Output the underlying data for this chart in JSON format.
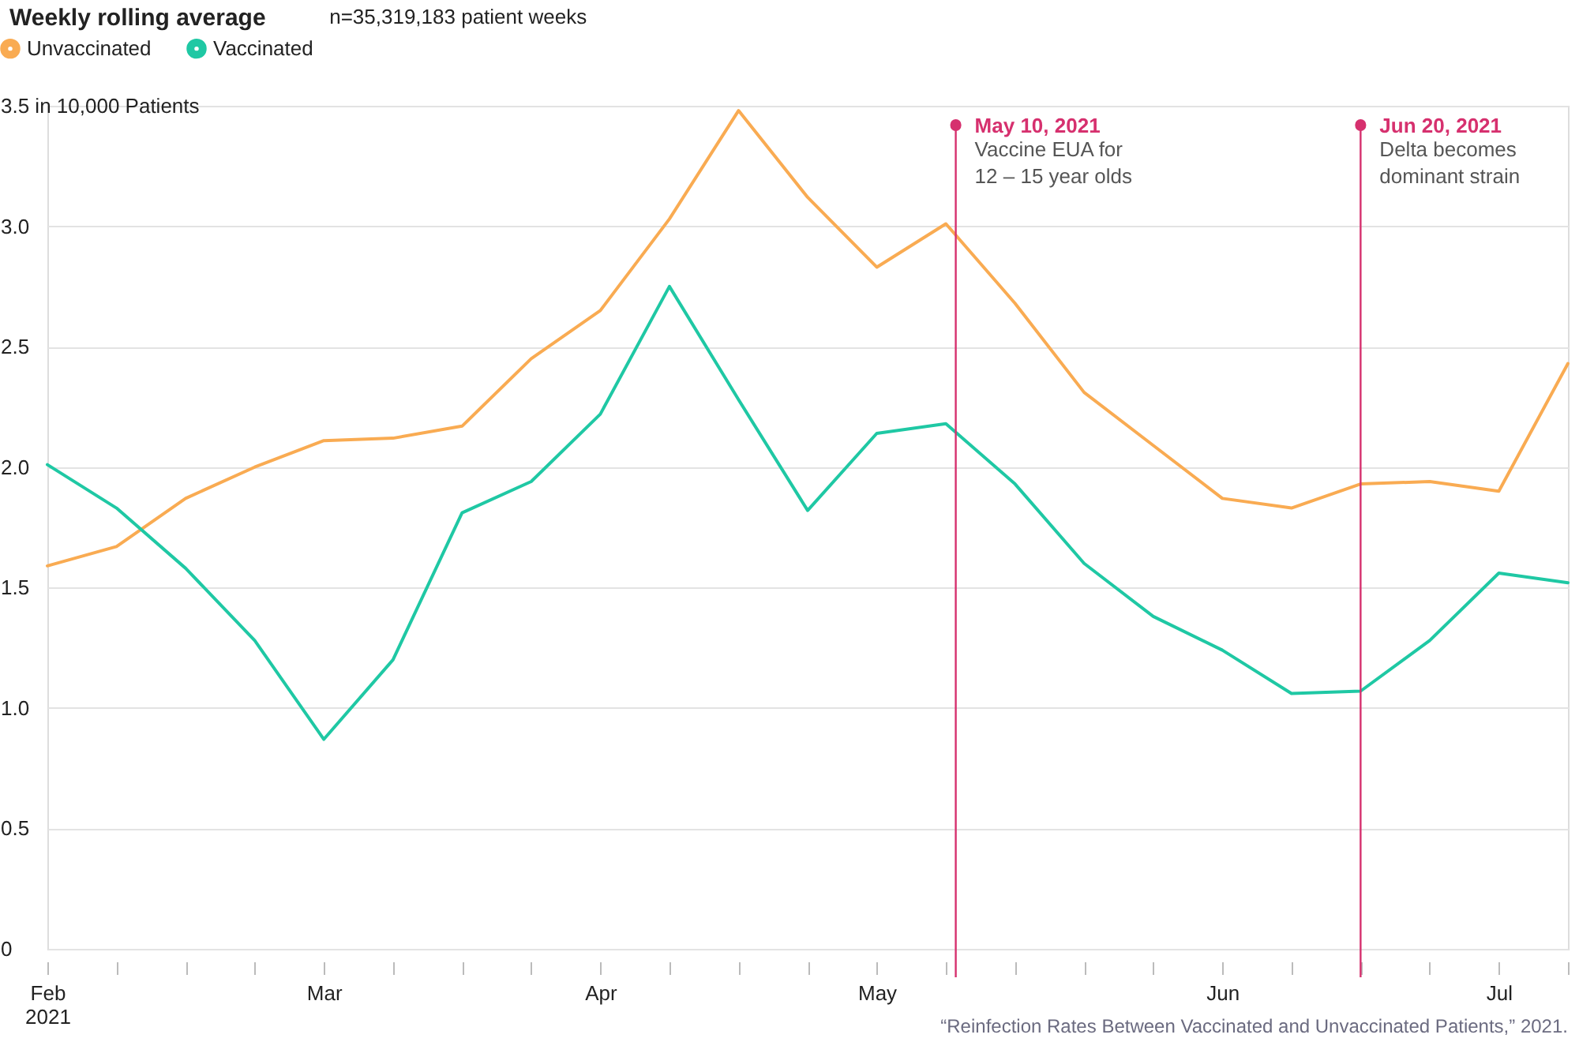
{
  "chart_data": {
    "type": "line",
    "title": "Weekly rolling average",
    "subtitle": "n=35,319,183 patient weeks",
    "x": [
      "2021-02-07",
      "2021-02-14",
      "2021-02-21",
      "2021-02-28",
      "2021-03-07",
      "2021-03-14",
      "2021-03-21",
      "2021-03-28",
      "2021-04-04",
      "2021-04-11",
      "2021-04-18",
      "2021-04-25",
      "2021-05-02",
      "2021-05-09",
      "2021-05-16",
      "2021-05-23",
      "2021-05-30",
      "2021-06-06",
      "2021-06-13",
      "2021-06-20",
      "2021-06-27",
      "2021-07-04",
      "2021-07-11"
    ],
    "series": [
      {
        "name": "Unvaccinated",
        "color": "#f9ab52",
        "values": [
          1.59,
          1.67,
          1.87,
          2.0,
          2.11,
          2.12,
          2.17,
          2.45,
          2.65,
          3.03,
          3.48,
          3.12,
          2.83,
          3.01,
          2.68,
          2.31,
          2.09,
          1.87,
          1.83,
          1.93,
          1.94,
          1.9,
          2.43
        ]
      },
      {
        "name": "Vaccinated",
        "color": "#1fc8a4",
        "values": [
          2.01,
          1.83,
          1.58,
          1.28,
          0.87,
          1.2,
          1.81,
          1.94,
          2.22,
          2.75,
          2.28,
          1.82,
          2.14,
          2.18,
          1.93,
          1.6,
          1.38,
          1.24,
          1.06,
          1.07,
          1.28,
          1.56,
          1.52
        ]
      }
    ],
    "xlim": [
      "2021-02-07",
      "2021-07-11"
    ],
    "xticks": [
      {
        "value": "2021-02-07",
        "label": "Feb\n2021"
      },
      {
        "value": "2021-02-14",
        "label": null
      },
      {
        "value": "2021-02-21",
        "label": null
      },
      {
        "value": "2021-02-28",
        "label": null
      },
      {
        "value": "2021-03-07",
        "label": "Mar"
      },
      {
        "value": "2021-03-14",
        "label": null
      },
      {
        "value": "2021-03-21",
        "label": null
      },
      {
        "value": "2021-03-28",
        "label": null
      },
      {
        "value": "2021-04-04",
        "label": "Apr"
      },
      {
        "value": "2021-04-11",
        "label": null
      },
      {
        "value": "2021-04-18",
        "label": null
      },
      {
        "value": "2021-04-25",
        "label": null
      },
      {
        "value": "2021-05-02",
        "label": "May"
      },
      {
        "value": "2021-05-09",
        "label": null
      },
      {
        "value": "2021-05-16",
        "label": null
      },
      {
        "value": "2021-05-23",
        "label": null
      },
      {
        "value": "2021-05-30",
        "label": null
      },
      {
        "value": "2021-06-06",
        "label": "Jun"
      },
      {
        "value": "2021-06-13",
        "label": null
      },
      {
        "value": "2021-06-20",
        "label": null
      },
      {
        "value": "2021-06-27",
        "label": null
      },
      {
        "value": "2021-07-04",
        "label": "Jul"
      },
      {
        "value": "2021-07-11",
        "label": null
      }
    ],
    "ylim": [
      0,
      3.5
    ],
    "yticks": [
      {
        "value": 0,
        "label": "0"
      },
      {
        "value": 0.5,
        "label": "0.5"
      },
      {
        "value": 1,
        "label": "1.0"
      },
      {
        "value": 1.5,
        "label": "1.5"
      },
      {
        "value": 2,
        "label": "2.0"
      },
      {
        "value": 2.5,
        "label": "2.5"
      },
      {
        "value": 3,
        "label": "3.0"
      },
      {
        "value": 3.5,
        "label": "3.5 in 10,000 Patients"
      }
    ],
    "ref_lines": [
      {
        "axis": "x",
        "value": "2021-05-10",
        "label": "May 10, 2021\nVaccine EUA for\n12 – 15 year olds",
        "color": "#d6306e"
      },
      {
        "axis": "x",
        "value": "2021-06-20",
        "label": "Jun 20, 2021\nDelta becomes\ndominant strain",
        "color": "#d6306e"
      }
    ],
    "annotations": [
      "“Reinfection Rates Between Vaccinated and Unvaccinated Patients,” 2021."
    ],
    "grid": "y",
    "legend": "top left",
    "marker": "none",
    "line_style": "solid"
  }
}
